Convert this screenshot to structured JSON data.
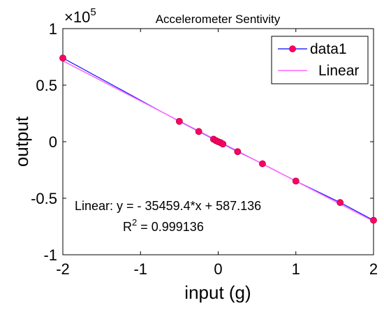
{
  "chart_data": {
    "type": "scatter",
    "title": "Accelerometer Sentivity",
    "xlabel": "input (g)",
    "ylabel": "output",
    "xlim": [
      -2,
      2
    ],
    "ylim": [
      -100000,
      100000
    ],
    "y_multiplier_label": "×10",
    "y_multiplier_exponent": "5",
    "x_ticks": [
      -2,
      -1,
      0,
      1,
      2
    ],
    "x_tick_labels": [
      "-2",
      "-1",
      "0",
      "1",
      "2"
    ],
    "y_ticks": [
      -100000,
      -50000,
      0,
      50000,
      100000
    ],
    "y_tick_labels": [
      "-1",
      "-0.5",
      "0",
      "0.5",
      "1"
    ],
    "legend_position": "top-right",
    "series": [
      {
        "name": "data1",
        "kind": "line-markers",
        "line_color": "#0000ff",
        "marker_color": "#ff0066",
        "x": [
          -2.0,
          -0.5,
          -0.25,
          -0.06,
          -0.03,
          0.0,
          0.03,
          0.06,
          0.25,
          0.57,
          1.0,
          1.57,
          2.0
        ],
        "y": [
          74000,
          18000,
          9000,
          2200,
          1000,
          0,
          -800,
          -2000,
          -8800,
          -19500,
          -34800,
          -53800,
          -69500
        ]
      },
      {
        "name": "Linear",
        "kind": "line",
        "line_color": "#ff66ff",
        "x": [
          -2.0,
          2.0
        ],
        "y": [
          71505.9,
          -70331.7
        ]
      }
    ],
    "annotations": {
      "equation": "Linear:  y = - 35459.4*x + 587.136",
      "r2_prefix": "R",
      "r2_superscript": "2",
      "r2_suffix": " = 0.999136"
    }
  }
}
